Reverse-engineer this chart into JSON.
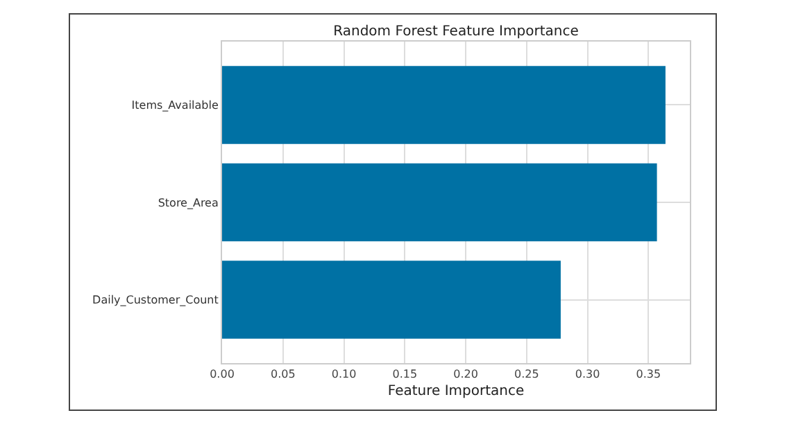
{
  "chart_data": {
    "type": "bar",
    "orientation": "horizontal",
    "title": "Random Forest Feature Importance",
    "xlabel": "Feature Importance",
    "categories": [
      "Items_Available",
      "Store_Area",
      "Daily_Customer_Count"
    ],
    "values": [
      0.364,
      0.357,
      0.278
    ],
    "color": "#0071a4",
    "xlim": [
      0,
      0.384
    ],
    "xticks": [
      {
        "value": 0,
        "label": "0.00"
      },
      {
        "value": 0.05,
        "label": "0.05"
      },
      {
        "value": 0.1,
        "label": "0.10"
      },
      {
        "value": 0.15,
        "label": "0.15"
      },
      {
        "value": 0.2,
        "label": "0.20"
      },
      {
        "value": 0.25,
        "label": "0.25"
      },
      {
        "value": 0.3,
        "label": "0.30"
      },
      {
        "value": 0.35,
        "label": "0.35"
      }
    ],
    "grid": true
  }
}
